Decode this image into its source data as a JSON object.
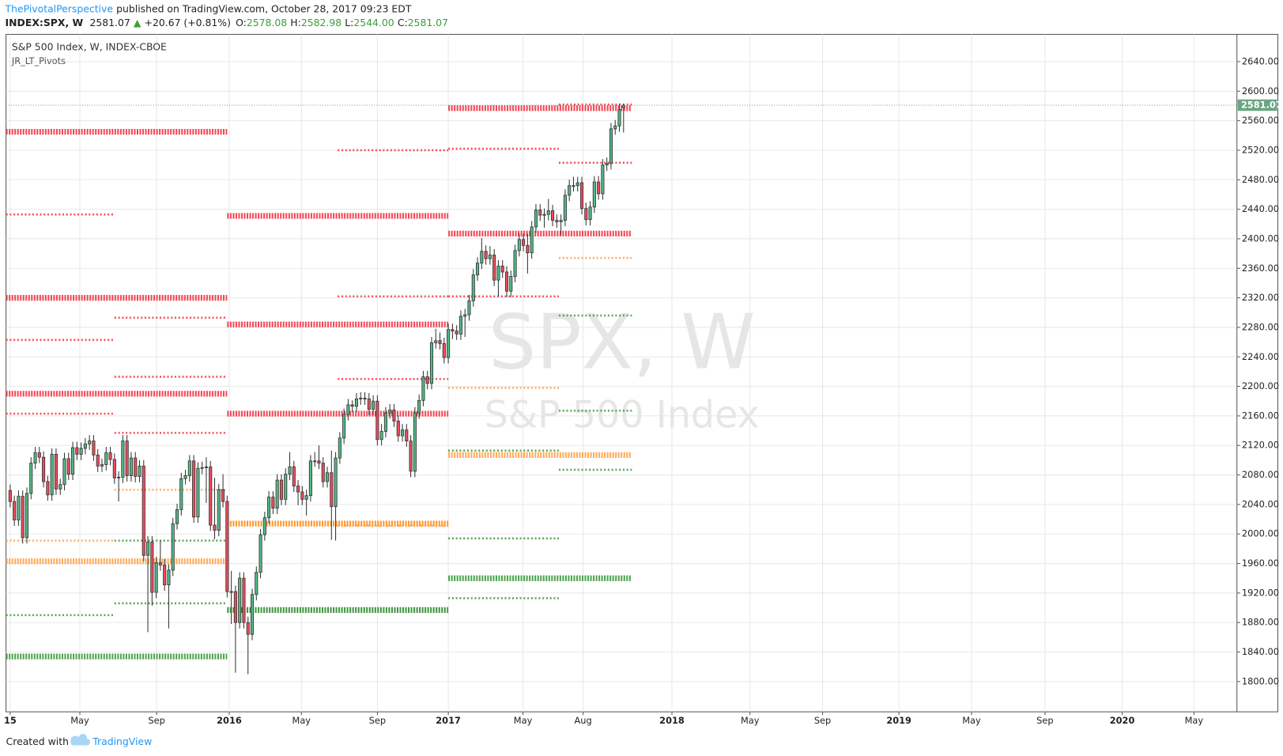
{
  "header": {
    "author": "ThePivotalPerspective",
    "published": "published on TradingView.com, October 28, 2017 09:23 EDT",
    "symbol": "INDEX:SPX, W",
    "price": "2581.07",
    "change": "+20.67 (+0.81%)",
    "ohlc": [
      {
        "label": "O:",
        "value": "2578.08"
      },
      {
        "label": "H:",
        "value": "2582.98"
      },
      {
        "label": "L:",
        "value": "2544.00"
      },
      {
        "label": "C:",
        "value": "2581.07"
      }
    ]
  },
  "footer": {
    "created": "Created with",
    "brand": "TradingView"
  },
  "chart_data": {
    "type": "candlestick",
    "title": "S&P 500 Index, W, INDEX-CBOE",
    "indicator": "JR_LT_Pivots",
    "watermark": "SPX, W",
    "watermark_subtitle": "S&P 500 Index",
    "up_color": "#53b987",
    "down_color": "#eb4d5c",
    "last_price": 2581.07,
    "last_price_color": "#6ba583",
    "grid": true,
    "xlim": [
      -1,
      294
    ],
    "ylim": [
      1759,
      2677
    ],
    "xticks": [
      {
        "value": 0,
        "label": "15"
      },
      {
        "value": 16.7,
        "label": "May"
      },
      {
        "value": 35.1,
        "label": "Sep"
      },
      {
        "value": 52.5,
        "label": "2016"
      },
      {
        "value": 69.8,
        "label": "May"
      },
      {
        "value": 88,
        "label": "Sep"
      },
      {
        "value": 105,
        "label": "2017"
      },
      {
        "value": 122.9,
        "label": "May"
      },
      {
        "value": 137.3,
        "label": "Aug"
      },
      {
        "value": 158.6,
        "label": "2018"
      },
      {
        "value": 177.3,
        "label": "May"
      },
      {
        "value": 194.7,
        "label": "Sep"
      },
      {
        "value": 213,
        "label": "2019"
      },
      {
        "value": 230.4,
        "label": "May"
      },
      {
        "value": 248,
        "label": "Sep"
      },
      {
        "value": 266.5,
        "label": "2020"
      },
      {
        "value": 283.7,
        "label": "May"
      }
    ],
    "yticks": [
      {
        "value": 1800,
        "label": "1800.00"
      },
      {
        "value": 1840,
        "label": "1840.00"
      },
      {
        "value": 1880,
        "label": "1880.00"
      },
      {
        "value": 1920,
        "label": "1920.00"
      },
      {
        "value": 1960,
        "label": "1960.00"
      },
      {
        "value": 2000,
        "label": "2000.00"
      },
      {
        "value": 2040,
        "label": "2040.00"
      },
      {
        "value": 2080,
        "label": "2080.00"
      },
      {
        "value": 2120,
        "label": "2120.00"
      },
      {
        "value": 2160,
        "label": "2160.00"
      },
      {
        "value": 2200,
        "label": "2200.00"
      },
      {
        "value": 2240,
        "label": "2240.00"
      },
      {
        "value": 2280,
        "label": "2280.00"
      },
      {
        "value": 2320,
        "label": "2320.00"
      },
      {
        "value": 2360,
        "label": "2360.00"
      },
      {
        "value": 2400,
        "label": "2400.00"
      },
      {
        "value": 2440,
        "label": "2440.00"
      },
      {
        "value": 2480,
        "label": "2480.00"
      },
      {
        "value": 2520,
        "label": "2520.00"
      },
      {
        "value": 2560,
        "label": "2560.00"
      },
      {
        "value": 2600,
        "label": "2600.00"
      },
      {
        "value": 2640,
        "label": "2640.00"
      }
    ],
    "candles": [
      [
        2059,
        2067,
        2036,
        2044
      ],
      [
        2044,
        2052,
        2011,
        2019
      ],
      [
        2019,
        2059,
        2011,
        2051
      ],
      [
        2051,
        2059,
        1987,
        1995
      ],
      [
        1995,
        2063,
        1987,
        2055
      ],
      [
        2055,
        2104,
        2047,
        2096
      ],
      [
        2096,
        2118,
        2088,
        2110
      ],
      [
        2110,
        2118,
        2096,
        2104
      ],
      [
        2104,
        2112,
        2063,
        2071
      ],
      [
        2071,
        2079,
        2045,
        2053
      ],
      [
        2053,
        2116,
        2045,
        2108
      ],
      [
        2108,
        2116,
        2053,
        2061
      ],
      [
        2061,
        2075,
        2053,
        2067
      ],
      [
        2067,
        2110,
        2059,
        2102
      ],
      [
        2102,
        2110,
        2073,
        2081
      ],
      [
        2081,
        2125,
        2073,
        2117
      ],
      [
        2117,
        2125,
        2100,
        2108
      ],
      [
        2108,
        2124,
        2100,
        2116
      ],
      [
        2116,
        2130,
        2108,
        2122
      ],
      [
        2122,
        2134,
        2114,
        2126
      ],
      [
        2126,
        2134,
        2099,
        2107
      ],
      [
        2107,
        2115,
        2084,
        2092
      ],
      [
        2092,
        2102,
        2084,
        2094
      ],
      [
        2094,
        2118,
        2086,
        2110
      ],
      [
        2110,
        2118,
        2093,
        2101
      ],
      [
        2101,
        2109,
        2068,
        2076
      ],
      [
        2076,
        2085,
        2044,
        2077
      ],
      [
        2077,
        2134,
        2069,
        2126
      ],
      [
        2126,
        2134,
        2071,
        2079
      ],
      [
        2079,
        2111,
        2071,
        2103
      ],
      [
        2103,
        2111,
        2070,
        2078
      ],
      [
        2078,
        2100,
        2070,
        2092
      ],
      [
        2092,
        2100,
        1963,
        1971
      ],
      [
        1971,
        1997,
        1867,
        1989
      ],
      [
        1989,
        1997,
        1903,
        1921
      ],
      [
        1921,
        1969,
        1913,
        1961
      ],
      [
        1961,
        1991,
        1950,
        1958
      ],
      [
        1958,
        1966,
        1923,
        1931
      ],
      [
        1931,
        1959,
        1872,
        1951
      ],
      [
        1951,
        2022,
        1943,
        2014
      ],
      [
        2014,
        2041,
        2006,
        2033
      ],
      [
        2033,
        2083,
        2025,
        2075
      ],
      [
        2075,
        2087,
        2067,
        2079
      ],
      [
        2079,
        2107,
        2071,
        2099
      ],
      [
        2099,
        2107,
        2015,
        2023
      ],
      [
        2023,
        2097,
        2015,
        2089
      ],
      [
        2089,
        2098,
        2081,
        2090
      ],
      [
        2090,
        2104,
        2042,
        2091
      ],
      [
        2091,
        2099,
        2004,
        2012
      ],
      [
        2012,
        2076,
        1993,
        2005
      ],
      [
        2005,
        2068,
        1997,
        2060
      ],
      [
        2060,
        2081,
        2036,
        2044
      ],
      [
        2044,
        2052,
        1914,
        1922
      ],
      [
        1922,
        1950,
        1878,
        1922
      ],
      [
        1922,
        1930,
        1812,
        1880
      ],
      [
        1880,
        1948,
        1872,
        1940
      ],
      [
        1940,
        1948,
        1872,
        1880
      ],
      [
        1880,
        1888,
        1810,
        1864
      ],
      [
        1864,
        1926,
        1856,
        1918
      ],
      [
        1918,
        1956,
        1910,
        1948
      ],
      [
        1948,
        2007,
        1940,
        1999
      ],
      [
        1999,
        2030,
        1991,
        2022
      ],
      [
        2022,
        2058,
        2014,
        2050
      ],
      [
        2050,
        2058,
        2027,
        2035
      ],
      [
        2035,
        2081,
        2027,
        2073
      ],
      [
        2073,
        2081,
        2039,
        2047
      ],
      [
        2047,
        2089,
        2039,
        2081
      ],
      [
        2081,
        2111,
        2073,
        2091
      ],
      [
        2091,
        2099,
        2057,
        2065
      ],
      [
        2065,
        2073,
        2039,
        2057
      ],
      [
        2057,
        2065,
        2039,
        2047
      ],
      [
        2047,
        2060,
        2025,
        2052
      ],
      [
        2052,
        2107,
        2044,
        2099
      ],
      [
        2099,
        2111,
        2091,
        2099
      ],
      [
        2099,
        2120,
        2088,
        2096
      ],
      [
        2096,
        2104,
        2063,
        2071
      ],
      [
        2071,
        2091,
        2063,
        2083
      ],
      [
        2083,
        2113,
        1992,
        2037
      ],
      [
        2037,
        2111,
        1991,
        2103
      ],
      [
        2103,
        2138,
        2095,
        2130
      ],
      [
        2130,
        2170,
        2122,
        2162
      ],
      [
        2162,
        2183,
        2154,
        2175
      ],
      [
        2175,
        2181,
        2165,
        2173
      ],
      [
        2173,
        2191,
        2165,
        2183
      ],
      [
        2183,
        2192,
        2175,
        2184
      ],
      [
        2184,
        2192,
        2175,
        2183
      ],
      [
        2183,
        2191,
        2161,
        2169
      ],
      [
        2169,
        2188,
        2161,
        2180
      ],
      [
        2180,
        2188,
        2120,
        2128
      ],
      [
        2128,
        2149,
        2120,
        2139
      ],
      [
        2139,
        2172,
        2131,
        2164
      ],
      [
        2164,
        2176,
        2156,
        2168
      ],
      [
        2168,
        2176,
        2145,
        2153
      ],
      [
        2153,
        2161,
        2125,
        2133
      ],
      [
        2133,
        2149,
        2125,
        2141
      ],
      [
        2141,
        2149,
        2118,
        2126
      ],
      [
        2126,
        2134,
        2077,
        2085
      ],
      [
        2085,
        2172,
        2077,
        2164
      ],
      [
        2164,
        2189,
        2156,
        2181
      ],
      [
        2181,
        2221,
        2173,
        2213
      ],
      [
        2213,
        2221,
        2196,
        2204
      ],
      [
        2204,
        2267,
        2196,
        2259
      ],
      [
        2259,
        2278,
        2251,
        2262
      ],
      [
        2262,
        2273,
        2250,
        2258
      ],
      [
        2258,
        2266,
        2231,
        2239
      ],
      [
        2239,
        2285,
        2231,
        2277
      ],
      [
        2277,
        2285,
        2264,
        2275
      ],
      [
        2275,
        2283,
        2263,
        2271
      ],
      [
        2271,
        2303,
        2263,
        2295
      ],
      [
        2295,
        2305,
        2267,
        2297
      ],
      [
        2297,
        2324,
        2289,
        2316
      ],
      [
        2316,
        2359,
        2308,
        2351
      ],
      [
        2351,
        2375,
        2343,
        2367
      ],
      [
        2367,
        2401,
        2359,
        2383
      ],
      [
        2383,
        2391,
        2365,
        2373
      ],
      [
        2373,
        2390,
        2365,
        2378
      ],
      [
        2378,
        2386,
        2336,
        2344
      ],
      [
        2344,
        2371,
        2322,
        2363
      ],
      [
        2363,
        2371,
        2347,
        2355
      ],
      [
        2355,
        2363,
        2321,
        2329
      ],
      [
        2329,
        2357,
        2321,
        2349
      ],
      [
        2349,
        2392,
        2341,
        2384
      ],
      [
        2384,
        2407,
        2376,
        2399
      ],
      [
        2399,
        2407,
        2383,
        2391
      ],
      [
        2391,
        2407,
        2353,
        2381
      ],
      [
        2381,
        2424,
        2373,
        2416
      ],
      [
        2416,
        2447,
        2408,
        2439
      ],
      [
        2439,
        2447,
        2424,
        2432
      ],
      [
        2432,
        2441,
        2415,
        2433
      ],
      [
        2433,
        2454,
        2425,
        2438
      ],
      [
        2438,
        2446,
        2417,
        2425
      ],
      [
        2425,
        2433,
        2415,
        2423
      ],
      [
        2423,
        2433,
        2405,
        2425
      ],
      [
        2425,
        2467,
        2417,
        2459
      ],
      [
        2459,
        2480,
        2451,
        2472
      ],
      [
        2472,
        2484,
        2464,
        2472
      ],
      [
        2472,
        2484,
        2464,
        2476
      ],
      [
        2476,
        2484,
        2433,
        2441
      ],
      [
        2441,
        2449,
        2418,
        2426
      ],
      [
        2426,
        2451,
        2418,
        2443
      ],
      [
        2443,
        2485,
        2435,
        2477
      ],
      [
        2477,
        2485,
        2453,
        2461
      ],
      [
        2461,
        2508,
        2453,
        2500
      ],
      [
        2500,
        2510,
        2492,
        2502
      ],
      [
        2502,
        2557,
        2494,
        2549
      ],
      [
        2549,
        2561,
        2541,
        2553
      ],
      [
        2553,
        2583,
        2545,
        2575
      ],
      [
        2578.08,
        2582.98,
        2544,
        2581.07
      ]
    ],
    "pivots": [
      {
        "from": -1,
        "to": 52,
        "value": 2545,
        "color": "#f23645",
        "weight": "heavy"
      },
      {
        "from": -1,
        "to": 52,
        "value": 2320,
        "color": "#f23645",
        "weight": "heavy"
      },
      {
        "from": -1,
        "to": 52,
        "value": 2190,
        "color": "#f23645",
        "weight": "heavy"
      },
      {
        "from": -1,
        "to": 52,
        "value": 1963,
        "color": "#ffa24c",
        "weight": "heavy"
      },
      {
        "from": -1,
        "to": 52,
        "value": 1834,
        "color": "#3d9c3d",
        "weight": "heavy"
      },
      {
        "from": -1,
        "to": 25,
        "value": 2433,
        "color": "#f23645",
        "weight": "light"
      },
      {
        "from": -1,
        "to": 25,
        "value": 2263,
        "color": "#f23645",
        "weight": "light"
      },
      {
        "from": -1,
        "to": 25,
        "value": 2163,
        "color": "#f23645",
        "weight": "light"
      },
      {
        "from": -1,
        "to": 25,
        "value": 1991,
        "color": "#ffa24c",
        "weight": "light"
      },
      {
        "from": -1,
        "to": 25,
        "value": 1890,
        "color": "#3d9c3d",
        "weight": "light"
      },
      {
        "from": 25,
        "to": 52,
        "value": 2293,
        "color": "#f23645",
        "weight": "light"
      },
      {
        "from": 25,
        "to": 52,
        "value": 2213,
        "color": "#f23645",
        "weight": "light"
      },
      {
        "from": 25,
        "to": 52,
        "value": 2137,
        "color": "#f23645",
        "weight": "light"
      },
      {
        "from": 25,
        "to": 52,
        "value": 2060,
        "color": "#ffa24c",
        "weight": "light"
      },
      {
        "from": 25,
        "to": 52,
        "value": 1991,
        "color": "#3d9c3d",
        "weight": "light"
      },
      {
        "from": 25,
        "to": 52,
        "value": 1906,
        "color": "#3d9c3d",
        "weight": "light"
      },
      {
        "from": 52,
        "to": 105,
        "value": 2431,
        "color": "#f23645",
        "weight": "heavy"
      },
      {
        "from": 52,
        "to": 105,
        "value": 2284,
        "color": "#f23645",
        "weight": "heavy"
      },
      {
        "from": 52,
        "to": 105,
        "value": 2163,
        "color": "#f23645",
        "weight": "heavy"
      },
      {
        "from": 52,
        "to": 105,
        "value": 2014,
        "color": "#ff8c1a",
        "weight": "heavy"
      },
      {
        "from": 52,
        "to": 105,
        "value": 1897,
        "color": "#2e8b2e",
        "weight": "heavy"
      },
      {
        "from": 78.5,
        "to": 105,
        "value": 2520,
        "color": "#f23645",
        "weight": "light"
      },
      {
        "from": 78.5,
        "to": 105,
        "value": 2322,
        "color": "#f23645",
        "weight": "light"
      },
      {
        "from": 78.5,
        "to": 105,
        "value": 2210,
        "color": "#f23645",
        "weight": "light"
      },
      {
        "from": 78.5,
        "to": 105,
        "value": 2011,
        "color": "#ffa24c",
        "weight": "light"
      },
      {
        "from": 105,
        "to": 149,
        "value": 2577,
        "color": "#f23645",
        "weight": "heavy"
      },
      {
        "from": 105,
        "to": 149,
        "value": 2407,
        "color": "#f23645",
        "weight": "heavy"
      },
      {
        "from": 105,
        "to": 149,
        "value": 2107,
        "color": "#ffa24c",
        "weight": "heavy"
      },
      {
        "from": 105,
        "to": 149,
        "value": 1940,
        "color": "#3d9c3d",
        "weight": "heavy"
      },
      {
        "from": 105,
        "to": 131.5,
        "value": 2522,
        "color": "#f23645",
        "weight": "light"
      },
      {
        "from": 105,
        "to": 131.5,
        "value": 2322,
        "color": "#f23645",
        "weight": "light"
      },
      {
        "from": 105,
        "to": 131.5,
        "value": 2198,
        "color": "#ffa24c",
        "weight": "light"
      },
      {
        "from": 105,
        "to": 131.5,
        "value": 2113,
        "color": "#3d9c3d",
        "weight": "light"
      },
      {
        "from": 105,
        "to": 131.5,
        "value": 1994,
        "color": "#3d9c3d",
        "weight": "light"
      },
      {
        "from": 105,
        "to": 131.5,
        "value": 1913,
        "color": "#3d9c3d",
        "weight": "light"
      },
      {
        "from": 131.5,
        "to": 149,
        "value": 2582,
        "color": "#f23645",
        "weight": "light"
      },
      {
        "from": 131.5,
        "to": 149,
        "value": 2503,
        "color": "#f23645",
        "weight": "light"
      },
      {
        "from": 131.5,
        "to": 149,
        "value": 2374,
        "color": "#ffa24c",
        "weight": "light"
      },
      {
        "from": 131.5,
        "to": 149,
        "value": 2296,
        "color": "#3d9c3d",
        "weight": "light"
      },
      {
        "from": 131.5,
        "to": 149,
        "value": 2167,
        "color": "#3d9c3d",
        "weight": "light"
      },
      {
        "from": 131.5,
        "to": 149,
        "value": 2087,
        "color": "#3d9c3d",
        "weight": "light"
      }
    ]
  }
}
